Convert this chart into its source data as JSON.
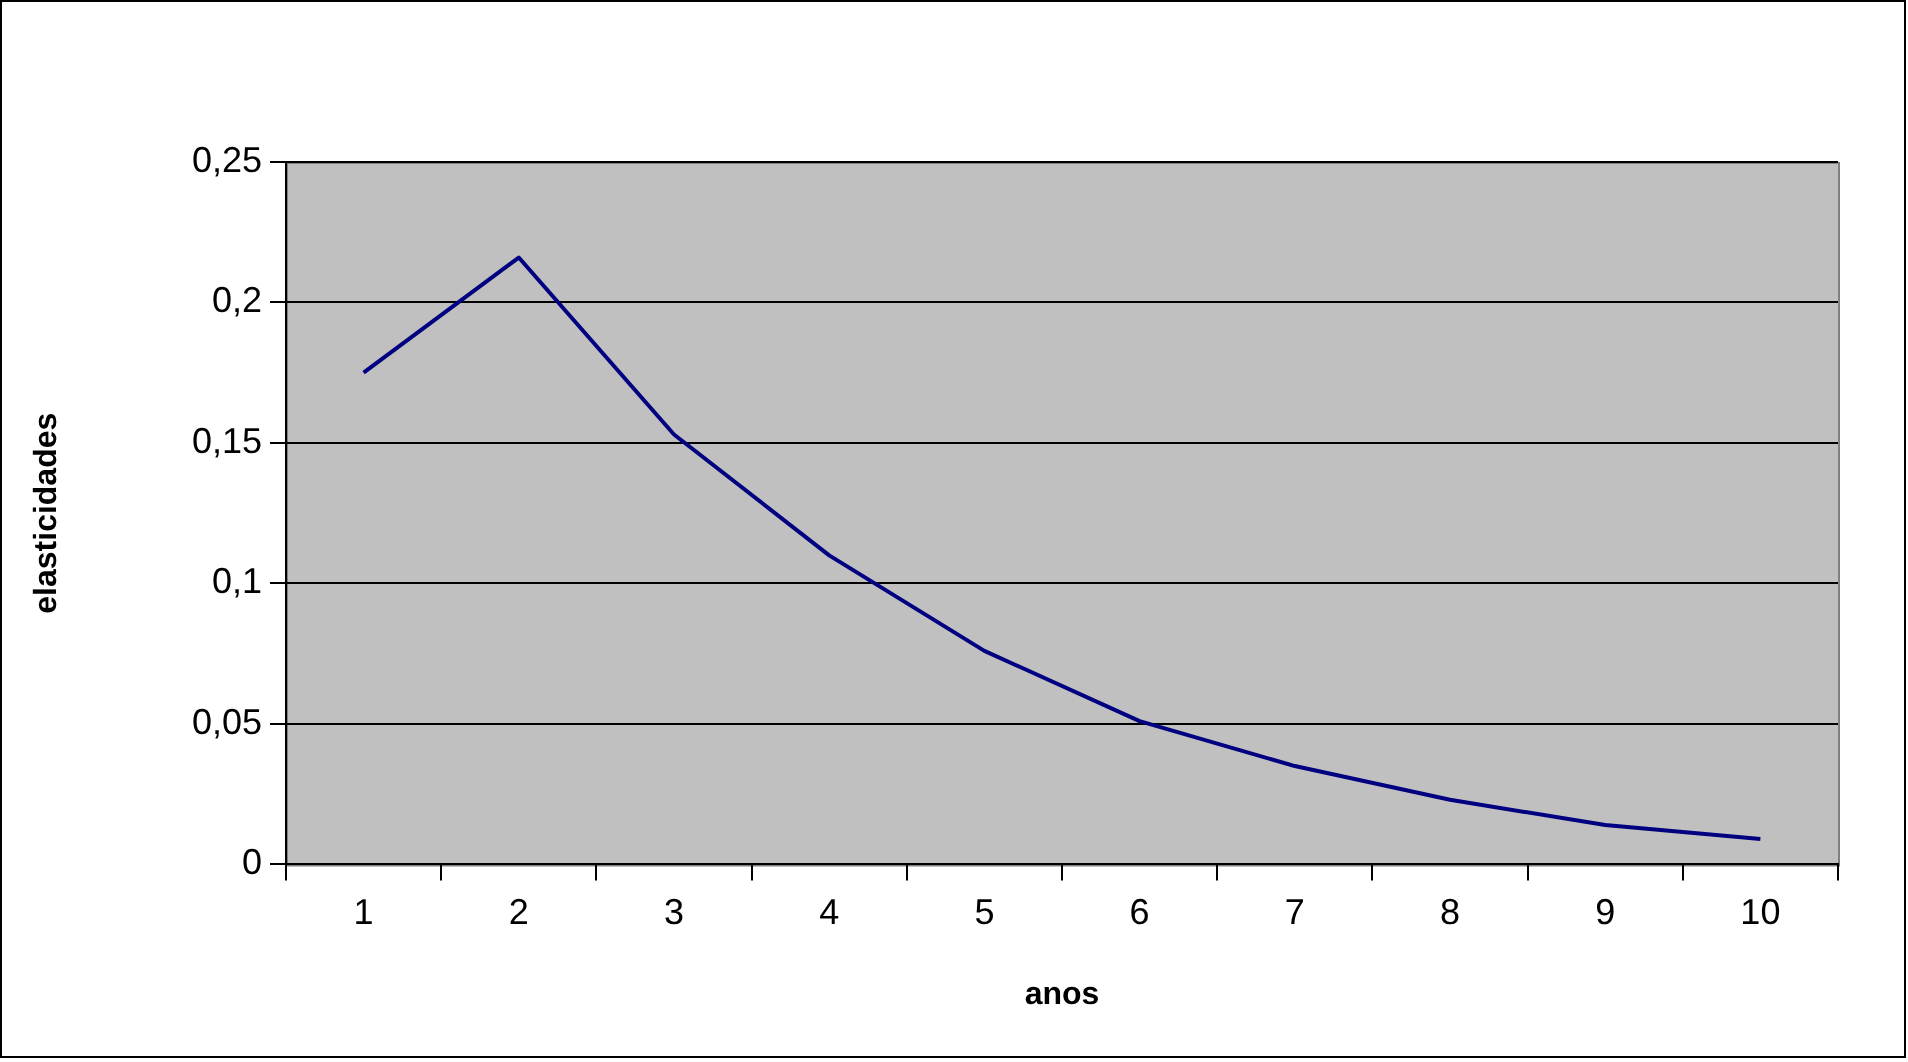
{
  "chart_data": {
    "type": "line",
    "xlabel": "anos",
    "ylabel": "elasticidades",
    "categories": [
      "1",
      "2",
      "3",
      "4",
      "5",
      "6",
      "7",
      "8",
      "9",
      "10"
    ],
    "series": [
      {
        "color": "#000080",
        "values": [
          0.175,
          0.216,
          0.153,
          0.11,
          0.076,
          0.051,
          0.035,
          0.023,
          0.014,
          0.009
        ]
      }
    ],
    "ylim": [
      0,
      0.25
    ],
    "yticks": [
      0,
      {
        "value": 0.05,
        "label": "0,05"
      },
      {
        "value": 0.1,
        "label": "0,1"
      },
      {
        "value": 0.15,
        "label": "0,15"
      },
      {
        "value": 0.2,
        "label": "0,2"
      },
      {
        "value": 0.25,
        "label": "0,25"
      }
    ],
    "grid": "y",
    "legend": false,
    "marker": "none",
    "line_style": "solid"
  }
}
